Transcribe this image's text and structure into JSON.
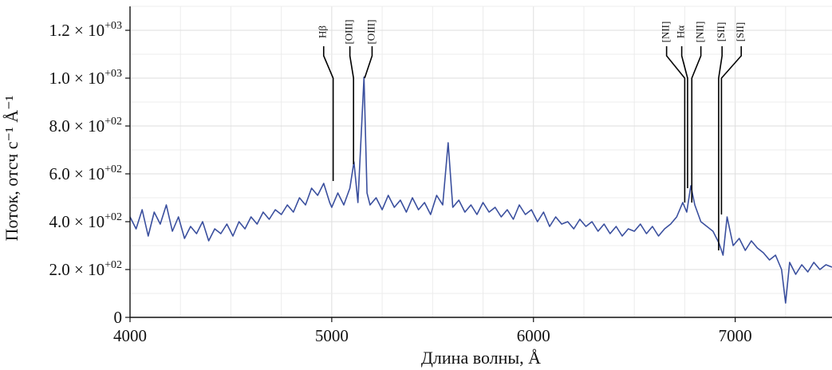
{
  "chart_data": {
    "type": "line",
    "xlabel": "Длина волны, Å",
    "ylabel": "Поток, отсч с⁻¹ Å⁻¹",
    "xlim": [
      4000,
      7480
    ],
    "ylim": [
      0,
      1300
    ],
    "grid": true,
    "x_ticks": [
      {
        "value": 4000,
        "label": "4000"
      },
      {
        "value": 5000,
        "label": "5000"
      },
      {
        "value": 6000,
        "label": "6000"
      },
      {
        "value": 7000,
        "label": "7000"
      }
    ],
    "y_ticks": [
      {
        "value": 0,
        "label": "0"
      },
      {
        "value": 200,
        "label": "2.0 × 10",
        "exp": "+02"
      },
      {
        "value": 400,
        "label": "4.0 × 10",
        "exp": "+02"
      },
      {
        "value": 600,
        "label": "6.0 × 10",
        "exp": "+02"
      },
      {
        "value": 800,
        "label": "8.0 × 10",
        "exp": "+02"
      },
      {
        "value": 1000,
        "label": "1.0 × 10",
        "exp": "+03"
      },
      {
        "value": 1200,
        "label": "1.2 × 10",
        "exp": "+03"
      }
    ],
    "series": [
      {
        "color": "#3a4f9e",
        "x": [
          4000,
          4030,
          4060,
          4090,
          4120,
          4150,
          4180,
          4210,
          4240,
          4270,
          4300,
          4330,
          4360,
          4390,
          4420,
          4450,
          4480,
          4510,
          4540,
          4570,
          4600,
          4630,
          4660,
          4690,
          4720,
          4750,
          4780,
          4810,
          4840,
          4870,
          4900,
          4930,
          4960,
          4990,
          5000,
          5030,
          5060,
          5090,
          5110,
          5130,
          5160,
          5175,
          5190,
          5220,
          5250,
          5280,
          5310,
          5340,
          5370,
          5400,
          5430,
          5460,
          5490,
          5520,
          5550,
          5577,
          5600,
          5630,
          5660,
          5690,
          5720,
          5750,
          5780,
          5810,
          5840,
          5870,
          5900,
          5930,
          5960,
          5990,
          6020,
          6050,
          6080,
          6110,
          6140,
          6170,
          6200,
          6230,
          6260,
          6290,
          6320,
          6350,
          6380,
          6410,
          6440,
          6470,
          6500,
          6530,
          6560,
          6590,
          6620,
          6650,
          6680,
          6710,
          6740,
          6760,
          6780,
          6800,
          6830,
          6860,
          6890,
          6920,
          6940,
          6960,
          6990,
          7020,
          7050,
          7080,
          7110,
          7140,
          7170,
          7200,
          7230,
          7250,
          7270,
          7300,
          7330,
          7360,
          7390,
          7420,
          7450,
          7480
        ],
        "values": [
          420,
          370,
          450,
          340,
          440,
          390,
          470,
          360,
          420,
          330,
          380,
          350,
          400,
          320,
          370,
          350,
          390,
          340,
          400,
          370,
          420,
          390,
          440,
          410,
          450,
          430,
          470,
          440,
          500,
          470,
          540,
          510,
          560,
          480,
          460,
          520,
          470,
          540,
          650,
          480,
          1005,
          520,
          470,
          500,
          450,
          510,
          460,
          490,
          440,
          500,
          450,
          480,
          430,
          510,
          470,
          730,
          460,
          490,
          440,
          470,
          430,
          480,
          440,
          460,
          420,
          450,
          410,
          470,
          430,
          450,
          400,
          440,
          380,
          420,
          390,
          400,
          370,
          410,
          380,
          400,
          360,
          390,
          350,
          380,
          340,
          370,
          360,
          390,
          350,
          380,
          340,
          370,
          390,
          420,
          480,
          440,
          550,
          470,
          400,
          380,
          360,
          310,
          260,
          420,
          300,
          330,
          280,
          320,
          290,
          270,
          240,
          260,
          200,
          60,
          230,
          180,
          220,
          190,
          230,
          200,
          220,
          210
        ]
      }
    ],
    "line_markers": [
      {
        "label": "Hβ",
        "line_x": 5007,
        "line_top": 1000,
        "line_bottom": 570,
        "label_x": 4960
      },
      {
        "label": "[OIII]",
        "line_x": 5108,
        "line_top": 1000,
        "line_bottom": 640,
        "label_x": 5090
      },
      {
        "label": "[OIII]",
        "line_x": 5163,
        "line_top": 1000,
        "line_bottom": 1000,
        "label_x": 5200
      },
      {
        "label": "[NII]",
        "line_x": 6750,
        "line_top": 1000,
        "line_bottom": 480,
        "label_x": 6660
      },
      {
        "label": "Hα",
        "line_x": 6764,
        "line_top": 1000,
        "line_bottom": 540,
        "label_x": 6735
      },
      {
        "label": "[NII]",
        "line_x": 6785,
        "line_top": 1000,
        "line_bottom": 480,
        "label_x": 6830
      },
      {
        "label": "[SII]",
        "line_x": 6918,
        "line_top": 1000,
        "line_bottom": 280,
        "label_x": 6935
      },
      {
        "label": "[SII]",
        "line_x": 6932,
        "line_top": 1000,
        "line_bottom": 430,
        "label_x": 7030
      }
    ]
  }
}
